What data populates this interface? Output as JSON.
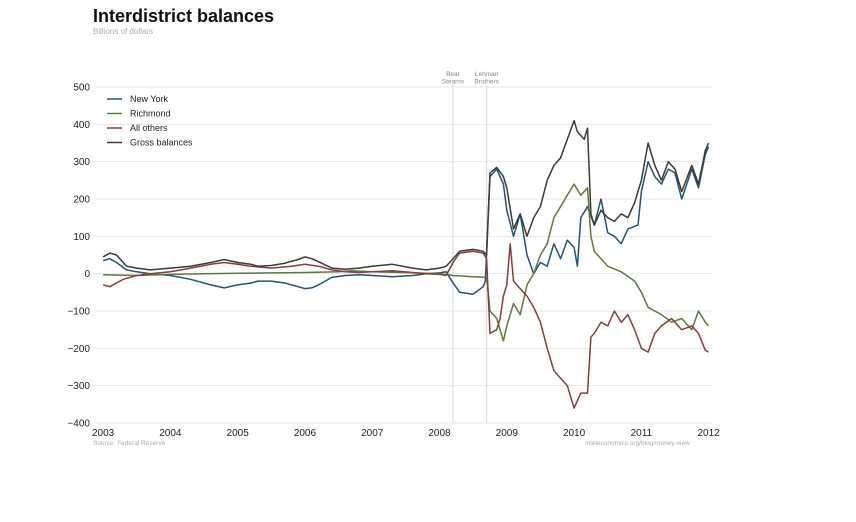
{
  "title": "Interdistrict balances",
  "subtitle": "Billions of dollars",
  "source": "Source: Federal Reserve",
  "credit": "mieleconomics.org/blog/money-view",
  "chart_data": {
    "type": "line",
    "xlim": [
      2002.85,
      2012.05
    ],
    "ylim": [
      -400,
      500
    ],
    "x_ticks": [
      2003,
      2004,
      2005,
      2006,
      2007,
      2008,
      2009,
      2010,
      2011,
      2012
    ],
    "x_tick_labels": [
      "2003",
      "2004",
      "2005",
      "2006",
      "2007",
      "2008",
      "2009",
      "2010",
      "2011",
      "2012"
    ],
    "y_ticks": [
      -400,
      -300,
      -200,
      -100,
      0,
      100,
      200,
      300,
      400,
      500
    ],
    "y_tick_labels": [
      "−400",
      "−300",
      "−200",
      "−100",
      "0",
      "100",
      "200",
      "300",
      "400",
      "500"
    ],
    "grid": true,
    "legend_position": "top-left",
    "annotations": [
      {
        "x": 2008.2,
        "lines": [
          "Bear",
          "Stearns"
        ]
      },
      {
        "x": 2008.7,
        "lines": [
          "Lehman",
          "Brothers"
        ]
      }
    ],
    "series": [
      {
        "name": "New York",
        "color": "#1f5477",
        "points": [
          [
            2003.0,
            35
          ],
          [
            2003.1,
            40
          ],
          [
            2003.2,
            30
          ],
          [
            2003.35,
            10
          ],
          [
            2003.5,
            5
          ],
          [
            2003.7,
            0
          ],
          [
            2004.0,
            -5
          ],
          [
            2004.3,
            -15
          ],
          [
            2004.6,
            -30
          ],
          [
            2004.8,
            -38
          ],
          [
            2005.0,
            -30
          ],
          [
            2005.2,
            -25
          ],
          [
            2005.3,
            -20
          ],
          [
            2005.5,
            -20
          ],
          [
            2005.7,
            -25
          ],
          [
            2005.9,
            -35
          ],
          [
            2006.0,
            -40
          ],
          [
            2006.1,
            -38
          ],
          [
            2006.2,
            -30
          ],
          [
            2006.4,
            -10
          ],
          [
            2006.6,
            -5
          ],
          [
            2006.8,
            -3
          ],
          [
            2007.0,
            -5
          ],
          [
            2007.3,
            -8
          ],
          [
            2007.6,
            -5
          ],
          [
            2007.8,
            0
          ],
          [
            2008.0,
            2
          ],
          [
            2008.1,
            5
          ],
          [
            2008.2,
            -25
          ],
          [
            2008.3,
            -50
          ],
          [
            2008.5,
            -55
          ],
          [
            2008.65,
            -35
          ],
          [
            2008.68,
            -20
          ],
          [
            2008.75,
            260
          ],
          [
            2008.85,
            280
          ],
          [
            2008.95,
            240
          ],
          [
            2009.0,
            170
          ],
          [
            2009.1,
            100
          ],
          [
            2009.2,
            160
          ],
          [
            2009.3,
            50
          ],
          [
            2009.4,
            0
          ],
          [
            2009.5,
            30
          ],
          [
            2009.6,
            20
          ],
          [
            2009.7,
            80
          ],
          [
            2009.8,
            40
          ],
          [
            2009.9,
            90
          ],
          [
            2010.0,
            70
          ],
          [
            2010.05,
            20
          ],
          [
            2010.1,
            150
          ],
          [
            2010.2,
            180
          ],
          [
            2010.3,
            130
          ],
          [
            2010.4,
            200
          ],
          [
            2010.5,
            110
          ],
          [
            2010.6,
            100
          ],
          [
            2010.7,
            80
          ],
          [
            2010.8,
            120
          ],
          [
            2010.95,
            130
          ],
          [
            2011.0,
            220
          ],
          [
            2011.1,
            300
          ],
          [
            2011.2,
            260
          ],
          [
            2011.3,
            240
          ],
          [
            2011.4,
            280
          ],
          [
            2011.5,
            270
          ],
          [
            2011.6,
            200
          ],
          [
            2011.75,
            280
          ],
          [
            2011.85,
            230
          ],
          [
            2011.95,
            320
          ],
          [
            2012.0,
            340
          ]
        ]
      },
      {
        "name": "Richmond",
        "color": "#5d7a3c",
        "points": [
          [
            2003.0,
            -3
          ],
          [
            2003.5,
            -5
          ],
          [
            2004.0,
            -2
          ],
          [
            2004.5,
            0
          ],
          [
            2005.0,
            1
          ],
          [
            2005.5,
            2
          ],
          [
            2006.0,
            3
          ],
          [
            2006.5,
            5
          ],
          [
            2006.7,
            8
          ],
          [
            2007.0,
            5
          ],
          [
            2007.5,
            3
          ],
          [
            2008.0,
            0
          ],
          [
            2008.2,
            -5
          ],
          [
            2008.5,
            -8
          ],
          [
            2008.7,
            -10
          ],
          [
            2008.75,
            -100
          ],
          [
            2008.85,
            -120
          ],
          [
            2008.95,
            -180
          ],
          [
            2009.0,
            -140
          ],
          [
            2009.1,
            -80
          ],
          [
            2009.2,
            -110
          ],
          [
            2009.3,
            -30
          ],
          [
            2009.4,
            0
          ],
          [
            2009.5,
            50
          ],
          [
            2009.6,
            80
          ],
          [
            2009.7,
            150
          ],
          [
            2009.8,
            180
          ],
          [
            2009.9,
            210
          ],
          [
            2010.0,
            240
          ],
          [
            2010.1,
            210
          ],
          [
            2010.2,
            230
          ],
          [
            2010.25,
            100
          ],
          [
            2010.3,
            60
          ],
          [
            2010.5,
            20
          ],
          [
            2010.7,
            5
          ],
          [
            2010.9,
            -20
          ],
          [
            2011.0,
            -50
          ],
          [
            2011.1,
            -90
          ],
          [
            2011.2,
            -100
          ],
          [
            2011.3,
            -110
          ],
          [
            2011.45,
            -130
          ],
          [
            2011.6,
            -120
          ],
          [
            2011.75,
            -150
          ],
          [
            2011.85,
            -100
          ],
          [
            2011.95,
            -130
          ],
          [
            2012.0,
            -140
          ]
        ]
      },
      {
        "name": "All others",
        "color": "#8c3b3d",
        "points": [
          [
            2003.0,
            -30
          ],
          [
            2003.1,
            -35
          ],
          [
            2003.3,
            -15
          ],
          [
            2003.5,
            -5
          ],
          [
            2003.7,
            0
          ],
          [
            2004.0,
            5
          ],
          [
            2004.3,
            15
          ],
          [
            2004.6,
            25
          ],
          [
            2004.8,
            30
          ],
          [
            2005.0,
            25
          ],
          [
            2005.2,
            20
          ],
          [
            2005.5,
            15
          ],
          [
            2005.8,
            20
          ],
          [
            2006.0,
            25
          ],
          [
            2006.2,
            20
          ],
          [
            2006.4,
            10
          ],
          [
            2006.6,
            5
          ],
          [
            2006.8,
            3
          ],
          [
            2007.0,
            5
          ],
          [
            2007.3,
            8
          ],
          [
            2007.6,
            3
          ],
          [
            2007.8,
            0
          ],
          [
            2008.0,
            -2
          ],
          [
            2008.1,
            -5
          ],
          [
            2008.2,
            30
          ],
          [
            2008.3,
            55
          ],
          [
            2008.5,
            60
          ],
          [
            2008.65,
            55
          ],
          [
            2008.7,
            40
          ],
          [
            2008.75,
            -160
          ],
          [
            2008.85,
            -150
          ],
          [
            2008.9,
            -120
          ],
          [
            2008.95,
            -60
          ],
          [
            2009.0,
            -30
          ],
          [
            2009.05,
            80
          ],
          [
            2009.1,
            -20
          ],
          [
            2009.2,
            -40
          ],
          [
            2009.3,
            -60
          ],
          [
            2009.4,
            -90
          ],
          [
            2009.5,
            -130
          ],
          [
            2009.6,
            -200
          ],
          [
            2009.7,
            -260
          ],
          [
            2009.8,
            -280
          ],
          [
            2009.9,
            -300
          ],
          [
            2010.0,
            -360
          ],
          [
            2010.05,
            -340
          ],
          [
            2010.1,
            -320
          ],
          [
            2010.2,
            -320
          ],
          [
            2010.25,
            -170
          ],
          [
            2010.3,
            -160
          ],
          [
            2010.4,
            -130
          ],
          [
            2010.5,
            -140
          ],
          [
            2010.6,
            -100
          ],
          [
            2010.7,
            -130
          ],
          [
            2010.8,
            -110
          ],
          [
            2010.9,
            -150
          ],
          [
            2011.0,
            -200
          ],
          [
            2011.1,
            -210
          ],
          [
            2011.2,
            -160
          ],
          [
            2011.3,
            -140
          ],
          [
            2011.45,
            -120
          ],
          [
            2011.6,
            -150
          ],
          [
            2011.75,
            -140
          ],
          [
            2011.85,
            -160
          ],
          [
            2011.95,
            -205
          ],
          [
            2012.0,
            -210
          ]
        ]
      },
      {
        "name": "Gross balances",
        "color": "#3a3a3a",
        "points": [
          [
            2003.0,
            45
          ],
          [
            2003.1,
            55
          ],
          [
            2003.2,
            50
          ],
          [
            2003.35,
            20
          ],
          [
            2003.5,
            15
          ],
          [
            2003.7,
            10
          ],
          [
            2004.0,
            15
          ],
          [
            2004.3,
            20
          ],
          [
            2004.6,
            30
          ],
          [
            2004.8,
            38
          ],
          [
            2005.0,
            30
          ],
          [
            2005.2,
            25
          ],
          [
            2005.3,
            20
          ],
          [
            2005.5,
            22
          ],
          [
            2005.7,
            28
          ],
          [
            2005.9,
            38
          ],
          [
            2006.0,
            45
          ],
          [
            2006.1,
            40
          ],
          [
            2006.2,
            32
          ],
          [
            2006.4,
            15
          ],
          [
            2006.6,
            12
          ],
          [
            2006.8,
            15
          ],
          [
            2007.0,
            20
          ],
          [
            2007.3,
            25
          ],
          [
            2007.6,
            15
          ],
          [
            2007.8,
            10
          ],
          [
            2008.0,
            15
          ],
          [
            2008.1,
            20
          ],
          [
            2008.2,
            40
          ],
          [
            2008.3,
            60
          ],
          [
            2008.5,
            65
          ],
          [
            2008.65,
            60
          ],
          [
            2008.7,
            50
          ],
          [
            2008.75,
            270
          ],
          [
            2008.85,
            285
          ],
          [
            2008.95,
            260
          ],
          [
            2009.0,
            230
          ],
          [
            2009.1,
            120
          ],
          [
            2009.2,
            160
          ],
          [
            2009.3,
            100
          ],
          [
            2009.4,
            150
          ],
          [
            2009.5,
            180
          ],
          [
            2009.6,
            250
          ],
          [
            2009.7,
            290
          ],
          [
            2009.8,
            310
          ],
          [
            2009.9,
            360
          ],
          [
            2010.0,
            410
          ],
          [
            2010.05,
            380
          ],
          [
            2010.15,
            360
          ],
          [
            2010.2,
            390
          ],
          [
            2010.25,
            160
          ],
          [
            2010.3,
            130
          ],
          [
            2010.4,
            170
          ],
          [
            2010.5,
            150
          ],
          [
            2010.6,
            140
          ],
          [
            2010.7,
            160
          ],
          [
            2010.8,
            150
          ],
          [
            2010.9,
            190
          ],
          [
            2011.0,
            250
          ],
          [
            2011.1,
            350
          ],
          [
            2011.2,
            290
          ],
          [
            2011.3,
            250
          ],
          [
            2011.4,
            300
          ],
          [
            2011.5,
            280
          ],
          [
            2011.6,
            220
          ],
          [
            2011.75,
            290
          ],
          [
            2011.85,
            240
          ],
          [
            2011.95,
            330
          ],
          [
            2012.0,
            350
          ]
        ]
      }
    ]
  }
}
